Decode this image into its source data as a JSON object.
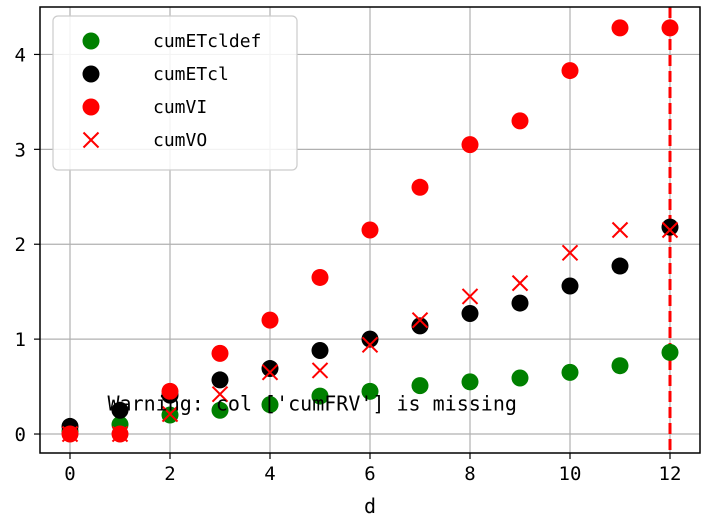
{
  "chart_data": {
    "type": "scatter",
    "title": "",
    "xlabel": "d",
    "ylabel": "",
    "xlim": [
      -0.6,
      12.6
    ],
    "ylim": [
      -0.2,
      4.5
    ],
    "xticks": [
      0,
      2,
      4,
      6,
      8,
      10,
      12
    ],
    "yticks": [
      0,
      1,
      2,
      3,
      4
    ],
    "grid": true,
    "legend_position": "top-left",
    "vertical_line": {
      "x": 12,
      "color": "#ff0000",
      "style": "dashed"
    },
    "annotation": {
      "text": "Warning: col ['cumFRV'] is missing",
      "x": 0.75,
      "y": 0.32
    },
    "series": [
      {
        "name": "cumETcldef",
        "marker": "circle",
        "color": "#008000",
        "x": [
          0,
          1,
          2,
          3,
          4,
          5,
          6,
          7,
          8,
          9,
          10,
          11,
          12
        ],
        "y": [
          0.03,
          0.1,
          0.2,
          0.25,
          0.31,
          0.4,
          0.45,
          0.51,
          0.55,
          0.59,
          0.65,
          0.72,
          0.86
        ]
      },
      {
        "name": "cumETcl",
        "marker": "circle",
        "color": "#000000",
        "x": [
          0,
          1,
          2,
          3,
          4,
          5,
          6,
          7,
          8,
          9,
          10,
          11,
          12
        ],
        "y": [
          0.08,
          0.25,
          0.41,
          0.57,
          0.69,
          0.88,
          1.0,
          1.14,
          1.27,
          1.38,
          1.56,
          1.77,
          2.18
        ]
      },
      {
        "name": "cumVI",
        "marker": "circle",
        "color": "#ff0000",
        "x": [
          0,
          1,
          2,
          3,
          4,
          5,
          6,
          7,
          8,
          9,
          10,
          11,
          12
        ],
        "y": [
          0.0,
          0.0,
          0.45,
          0.85,
          1.2,
          1.65,
          2.15,
          2.6,
          3.05,
          3.3,
          3.83,
          4.28,
          4.28
        ]
      },
      {
        "name": "cumVO",
        "marker": "x",
        "color": "#ff0000",
        "x": [
          0,
          1,
          2,
          3,
          4,
          5,
          6,
          7,
          8,
          9,
          10,
          11,
          12
        ],
        "y": [
          0.0,
          0.0,
          0.21,
          0.42,
          0.65,
          0.67,
          0.94,
          1.2,
          1.45,
          1.59,
          1.91,
          2.15,
          2.15
        ]
      }
    ]
  }
}
